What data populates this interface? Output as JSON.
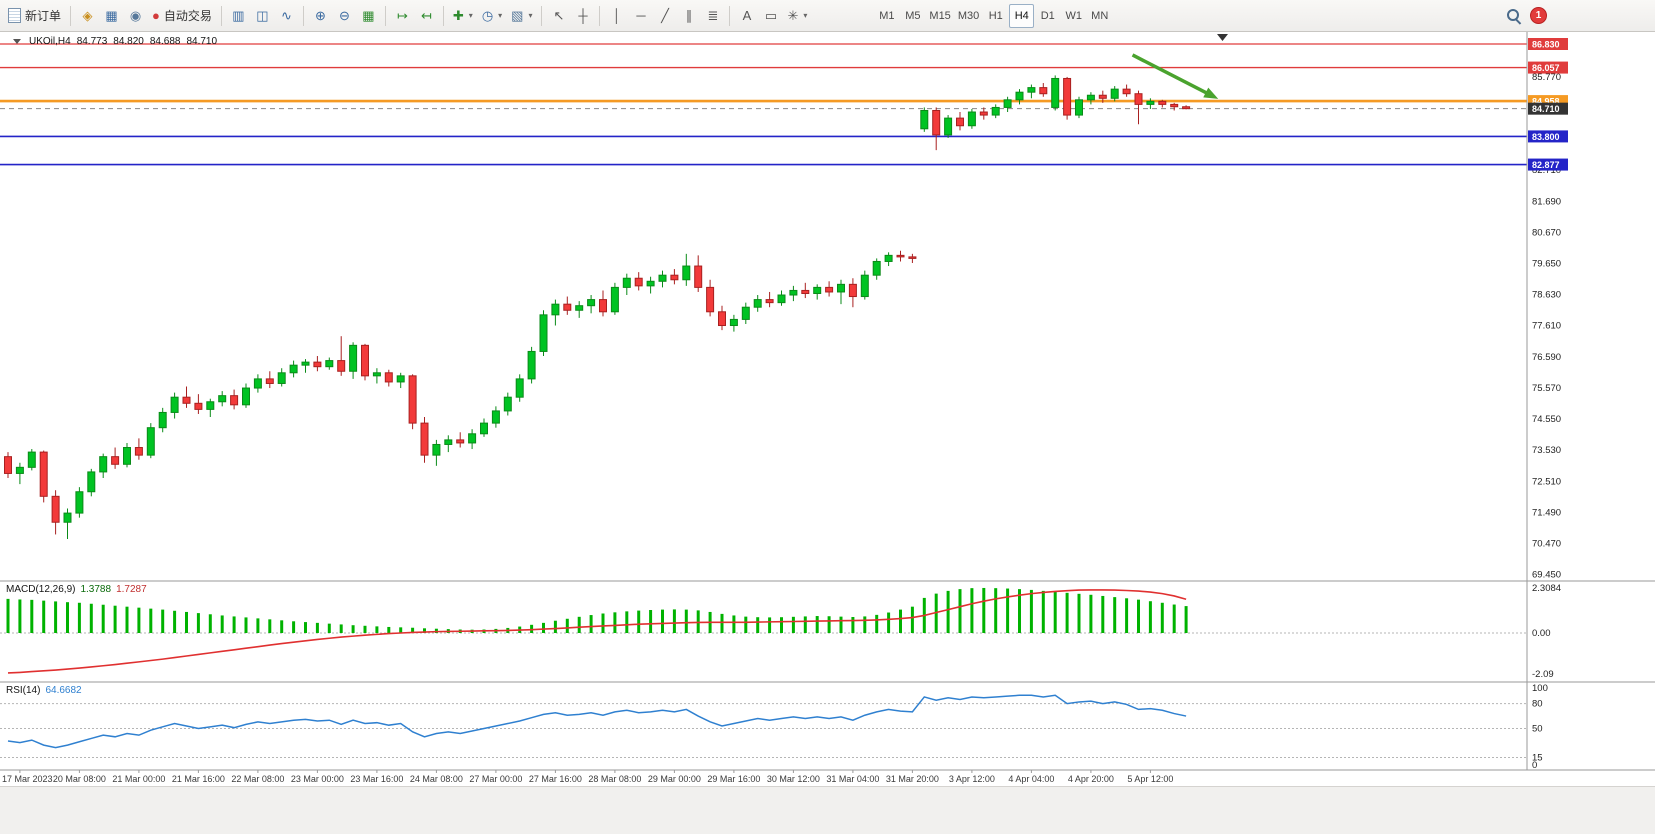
{
  "toolbar": {
    "new_order_label": "新订单",
    "autotrading_label": "自动交易",
    "timeframes": [
      "M1",
      "M5",
      "M15",
      "M30",
      "H1",
      "H4",
      "D1",
      "W1",
      "MN"
    ],
    "active_timeframe": "H4",
    "notification_count": "1",
    "icons": {
      "accounts": "◈",
      "charts_window": "▦",
      "community": "◉",
      "autotrading_dot": "●",
      "chart_bars": "▥",
      "chart_candles": "◫",
      "chart_line": "∿",
      "zoom_in": "⊕",
      "zoom_out": "⊖",
      "tile_windows": "▦",
      "auto_scroll": "↦",
      "chart_shift": "↤",
      "new_chart": "✚",
      "periods": "◷",
      "templates": "▧",
      "cursor": "↖",
      "crosshair": "┼",
      "vline": "│",
      "hline": "─",
      "trendline": "╱",
      "channel": "∥",
      "fibonacci": "≣",
      "text_tool": "A",
      "label_tool": "▭",
      "shapes": "✳",
      "dropdown": "▾"
    }
  },
  "chart_header": {
    "symbol_period": "UKOil,H4",
    "open": "84.773",
    "high": "84.820",
    "low": "84.688",
    "close": "84.710"
  },
  "chart_data": {
    "type": "candlestick",
    "symbol": "UKOil",
    "timeframe": "H4",
    "colors": {
      "up": "#00c323",
      "up_border": "#0a8a18",
      "down": "#f23a3a",
      "down_border": "#a82020",
      "macd_hist": "#00b200",
      "macd_signal": "#e03030",
      "rsi": "#2f80d0"
    },
    "price_axis": {
      "labels": [
        "85.770",
        "84.750",
        "83.730",
        "82.710",
        "81.690",
        "80.670",
        "79.650",
        "78.630",
        "77.610",
        "76.590",
        "75.570",
        "74.550",
        "73.530",
        "72.510",
        "71.490",
        "70.470",
        "69.450"
      ],
      "badges": [
        {
          "value": "86.830",
          "price": 86.83,
          "color": "#e03c3c"
        },
        {
          "value": "86.057",
          "price": 86.057,
          "color": "#e03c3c"
        },
        {
          "value": "84.958",
          "price": 84.958,
          "color": "#f59a23"
        },
        {
          "value": "84.710",
          "price": 84.71,
          "color": "#333333"
        },
        {
          "value": "83.800",
          "price": 83.8,
          "color": "#2424c8"
        },
        {
          "value": "82.877",
          "price": 82.877,
          "color": "#2424c8"
        }
      ]
    },
    "hlines": [
      {
        "price": 86.83,
        "color": "#e03c3c",
        "width": 1.2,
        "style": "solid"
      },
      {
        "price": 86.057,
        "color": "#e03c3c",
        "width": 1.4,
        "style": "solid"
      },
      {
        "price": 84.958,
        "color": "#f59a23",
        "width": 2.6,
        "style": "solid"
      },
      {
        "price": 84.71,
        "color": "#888888",
        "width": 1,
        "style": "dash"
      },
      {
        "price": 83.8,
        "color": "#2424c8",
        "width": 1.6,
        "style": "solid"
      },
      {
        "price": 82.877,
        "color": "#2424c8",
        "width": 1.6,
        "style": "solid"
      }
    ],
    "annotation_arrow": {
      "from_index": 94.5,
      "from_price": 86.47,
      "to_index": 101.7,
      "to_price": 85.03,
      "color": "#4aa32e"
    },
    "times": [
      "17 Mar 2023",
      "20 Mar 08:00",
      "21 Mar 00:00",
      "21 Mar 16:00",
      "22 Mar 08:00",
      "23 Mar 00:00",
      "23 Mar 16:00",
      "24 Mar 08:00",
      "27 Mar 00:00",
      "27 Mar 16:00",
      "28 Mar 08:00",
      "29 Mar 00:00",
      "29 Mar 16:00",
      "30 Mar 12:00",
      "31 Mar 04:00",
      "31 Mar 20:00",
      "3 Apr 12:00",
      "4 Apr 04:00",
      "4 Apr 20:00",
      "5 Apr 12:00"
    ],
    "candles": [
      [
        73.3,
        73.45,
        72.6,
        72.75
      ],
      [
        72.75,
        73.1,
        72.4,
        72.95
      ],
      [
        72.95,
        73.55,
        72.85,
        73.45
      ],
      [
        73.45,
        73.5,
        71.8,
        72.0
      ],
      [
        72.0,
        72.2,
        70.75,
        71.15
      ],
      [
        71.15,
        71.6,
        70.6,
        71.45
      ],
      [
        71.45,
        72.3,
        71.3,
        72.15
      ],
      [
        72.15,
        72.9,
        72.0,
        72.8
      ],
      [
        72.8,
        73.4,
        72.6,
        73.3
      ],
      [
        73.3,
        73.6,
        72.9,
        73.05
      ],
      [
        73.05,
        73.75,
        72.95,
        73.6
      ],
      [
        73.6,
        73.9,
        73.2,
        73.35
      ],
      [
        73.35,
        74.4,
        73.25,
        74.25
      ],
      [
        74.25,
        74.9,
        74.1,
        74.75
      ],
      [
        74.75,
        75.4,
        74.55,
        75.25
      ],
      [
        75.25,
        75.6,
        74.9,
        75.05
      ],
      [
        75.05,
        75.35,
        74.7,
        74.85
      ],
      [
        74.85,
        75.2,
        74.6,
        75.1
      ],
      [
        75.1,
        75.45,
        74.95,
        75.3
      ],
      [
        75.3,
        75.5,
        74.85,
        75.0
      ],
      [
        75.0,
        75.7,
        74.9,
        75.55
      ],
      [
        75.55,
        76.0,
        75.4,
        75.85
      ],
      [
        75.85,
        76.1,
        75.55,
        75.7
      ],
      [
        75.7,
        76.2,
        75.6,
        76.05
      ],
      [
        76.05,
        76.45,
        75.9,
        76.3
      ],
      [
        76.3,
        76.5,
        76.05,
        76.4
      ],
      [
        76.4,
        76.6,
        76.1,
        76.25
      ],
      [
        76.25,
        76.55,
        76.15,
        76.45
      ],
      [
        76.45,
        77.25,
        75.95,
        76.1
      ],
      [
        76.1,
        77.05,
        75.85,
        76.95
      ],
      [
        76.95,
        77.0,
        75.8,
        75.95
      ],
      [
        75.95,
        76.2,
        75.7,
        76.05
      ],
      [
        76.05,
        76.15,
        75.6,
        75.75
      ],
      [
        75.75,
        76.05,
        75.55,
        75.95
      ],
      [
        75.95,
        76.0,
        74.2,
        74.4
      ],
      [
        74.4,
        74.6,
        73.1,
        73.35
      ],
      [
        73.35,
        73.85,
        73.0,
        73.7
      ],
      [
        73.7,
        74.0,
        73.45,
        73.85
      ],
      [
        73.85,
        74.1,
        73.6,
        73.75
      ],
      [
        73.75,
        74.2,
        73.55,
        74.05
      ],
      [
        74.05,
        74.55,
        73.95,
        74.4
      ],
      [
        74.4,
        74.95,
        74.25,
        74.8
      ],
      [
        74.8,
        75.4,
        74.65,
        75.25
      ],
      [
        75.25,
        76.0,
        75.1,
        75.85
      ],
      [
        75.85,
        76.9,
        75.7,
        76.75
      ],
      [
        76.75,
        78.1,
        76.6,
        77.95
      ],
      [
        77.95,
        78.45,
        77.6,
        78.3
      ],
      [
        78.3,
        78.55,
        77.95,
        78.1
      ],
      [
        78.1,
        78.4,
        77.85,
        78.25
      ],
      [
        78.25,
        78.6,
        78.0,
        78.45
      ],
      [
        78.45,
        78.75,
        77.9,
        78.05
      ],
      [
        78.05,
        79.0,
        77.95,
        78.85
      ],
      [
        78.85,
        79.3,
        78.6,
        79.15
      ],
      [
        79.15,
        79.35,
        78.75,
        78.9
      ],
      [
        78.9,
        79.2,
        78.65,
        79.05
      ],
      [
        79.05,
        79.4,
        78.85,
        79.25
      ],
      [
        79.25,
        79.45,
        78.95,
        79.1
      ],
      [
        79.1,
        79.95,
        78.9,
        79.55
      ],
      [
        79.55,
        79.9,
        78.7,
        78.85
      ],
      [
        78.85,
        79.1,
        77.9,
        78.05
      ],
      [
        78.05,
        78.25,
        77.45,
        77.6
      ],
      [
        77.6,
        77.95,
        77.4,
        77.8
      ],
      [
        77.8,
        78.35,
        77.65,
        78.2
      ],
      [
        78.2,
        78.6,
        78.05,
        78.45
      ],
      [
        78.45,
        78.7,
        78.2,
        78.35
      ],
      [
        78.35,
        78.75,
        78.25,
        78.6
      ],
      [
        78.6,
        78.9,
        78.4,
        78.75
      ],
      [
        78.75,
        79.0,
        78.5,
        78.65
      ],
      [
        78.65,
        78.95,
        78.45,
        78.85
      ],
      [
        78.85,
        79.05,
        78.55,
        78.7
      ],
      [
        78.7,
        79.1,
        78.3,
        78.95
      ],
      [
        78.95,
        79.15,
        78.2,
        78.55
      ],
      [
        78.55,
        79.4,
        78.45,
        79.25
      ],
      [
        79.25,
        79.8,
        79.1,
        79.7
      ],
      [
        79.7,
        80.0,
        79.55,
        79.9
      ],
      [
        79.9,
        80.05,
        79.7,
        79.85
      ],
      [
        79.85,
        79.95,
        79.65,
        79.8
      ],
      [
        84.05,
        84.75,
        83.95,
        84.65
      ],
      [
        84.65,
        84.75,
        83.35,
        83.85
      ],
      [
        83.85,
        84.5,
        83.75,
        84.4
      ],
      [
        84.4,
        84.6,
        84.0,
        84.15
      ],
      [
        84.15,
        84.7,
        84.05,
        84.6
      ],
      [
        84.6,
        84.75,
        84.35,
        84.5
      ],
      [
        84.5,
        84.85,
        84.4,
        84.75
      ],
      [
        84.75,
        85.1,
        84.6,
        85.0
      ],
      [
        85.0,
        85.35,
        84.85,
        85.25
      ],
      [
        85.25,
        85.5,
        85.05,
        85.4
      ],
      [
        85.4,
        85.55,
        85.1,
        85.2
      ],
      [
        84.75,
        85.8,
        84.65,
        85.7
      ],
      [
        85.7,
        85.75,
        84.35,
        84.5
      ],
      [
        84.5,
        85.1,
        84.4,
        85.0
      ],
      [
        85.0,
        85.25,
        84.85,
        85.15
      ],
      [
        85.15,
        85.3,
        84.9,
        85.05
      ],
      [
        85.05,
        85.45,
        84.95,
        85.35
      ],
      [
        85.35,
        85.5,
        85.1,
        85.2
      ],
      [
        85.2,
        85.3,
        84.2,
        84.85
      ],
      [
        84.85,
        85.05,
        84.7,
        84.95
      ],
      [
        84.95,
        85.0,
        84.75,
        84.85
      ],
      [
        84.85,
        84.9,
        84.65,
        84.773
      ],
      [
        84.773,
        84.82,
        84.688,
        84.71
      ]
    ],
    "indicators": {
      "macd": {
        "label": "MACD(12,26,9)",
        "value_main": "1.3788",
        "value_signal": "1.7287",
        "axis_labels": [
          "2.3084",
          "0.00",
          "-2.09"
        ],
        "histogram": [
          1.75,
          1.72,
          1.7,
          1.66,
          1.62,
          1.58,
          1.55,
          1.5,
          1.45,
          1.4,
          1.35,
          1.3,
          1.25,
          1.2,
          1.14,
          1.08,
          1.02,
          0.96,
          0.9,
          0.85,
          0.8,
          0.75,
          0.7,
          0.65,
          0.6,
          0.56,
          0.52,
          0.48,
          0.44,
          0.4,
          0.37,
          0.34,
          0.31,
          0.29,
          0.27,
          0.24,
          0.22,
          0.2,
          0.18,
          0.17,
          0.18,
          0.21,
          0.26,
          0.33,
          0.42,
          0.52,
          0.63,
          0.73,
          0.83,
          0.92,
          1.0,
          1.06,
          1.11,
          1.15,
          1.18,
          1.2,
          1.21,
          1.2,
          1.16,
          1.08,
          0.98,
          0.9,
          0.84,
          0.81,
          0.8,
          0.81,
          0.83,
          0.85,
          0.87,
          0.86,
          0.84,
          0.82,
          0.85,
          0.93,
          1.05,
          1.2,
          1.35,
          1.8,
          2.02,
          2.16,
          2.25,
          2.3,
          2.31,
          2.3,
          2.28,
          2.25,
          2.21,
          2.16,
          2.11,
          2.06,
          2.01,
          1.96,
          1.9,
          1.84,
          1.78,
          1.71,
          1.63,
          1.55,
          1.46,
          1.38
        ],
        "signal": [
          -2.05,
          -2.02,
          -1.98,
          -1.94,
          -1.9,
          -1.85,
          -1.8,
          -1.74,
          -1.68,
          -1.62,
          -1.55,
          -1.48,
          -1.41,
          -1.34,
          -1.26,
          -1.18,
          -1.1,
          -1.02,
          -0.94,
          -0.86,
          -0.78,
          -0.7,
          -0.62,
          -0.54,
          -0.47,
          -0.4,
          -0.33,
          -0.27,
          -0.21,
          -0.16,
          -0.11,
          -0.07,
          -0.03,
          0.0,
          0.03,
          0.05,
          0.07,
          0.08,
          0.09,
          0.1,
          0.11,
          0.12,
          0.13,
          0.15,
          0.17,
          0.2,
          0.23,
          0.26,
          0.3,
          0.33,
          0.36,
          0.39,
          0.42,
          0.45,
          0.47,
          0.49,
          0.51,
          0.53,
          0.54,
          0.55,
          0.55,
          0.55,
          0.55,
          0.56,
          0.57,
          0.58,
          0.59,
          0.6,
          0.61,
          0.62,
          0.63,
          0.64,
          0.65,
          0.67,
          0.7,
          0.74,
          0.79,
          0.9,
          1.05,
          1.2,
          1.35,
          1.5,
          1.63,
          1.75,
          1.85,
          1.94,
          2.02,
          2.08,
          2.13,
          2.17,
          2.2,
          2.21,
          2.21,
          2.2,
          2.18,
          2.15,
          2.1,
          2.02,
          1.9,
          1.73
        ]
      },
      "rsi": {
        "label": "RSI(14)",
        "value": "64.6682",
        "axis_labels": [
          "100",
          "80",
          "50",
          "15",
          "0"
        ],
        "level_lines": [
          80,
          50,
          15
        ],
        "series": [
          35,
          33,
          36,
          30,
          27,
          30,
          34,
          38,
          42,
          40,
          44,
          42,
          48,
          52,
          56,
          53,
          50,
          52,
          54,
          51,
          55,
          58,
          56,
          58,
          60,
          61,
          59,
          60,
          55,
          60,
          56,
          57,
          54,
          56,
          46,
          40,
          44,
          46,
          44,
          47,
          50,
          53,
          56,
          59,
          63,
          67,
          69,
          66,
          67,
          69,
          66,
          70,
          72,
          69,
          70,
          72,
          70,
          73,
          65,
          58,
          53,
          56,
          59,
          62,
          60,
          62,
          64,
          62,
          64,
          62,
          64,
          60,
          66,
          70,
          73,
          71,
          70,
          88,
          84,
          87,
          85,
          88,
          87,
          88,
          89,
          90,
          90,
          88,
          90,
          80,
          82,
          83,
          80,
          82,
          79,
          73,
          74,
          72,
          68,
          65
        ]
      }
    }
  }
}
